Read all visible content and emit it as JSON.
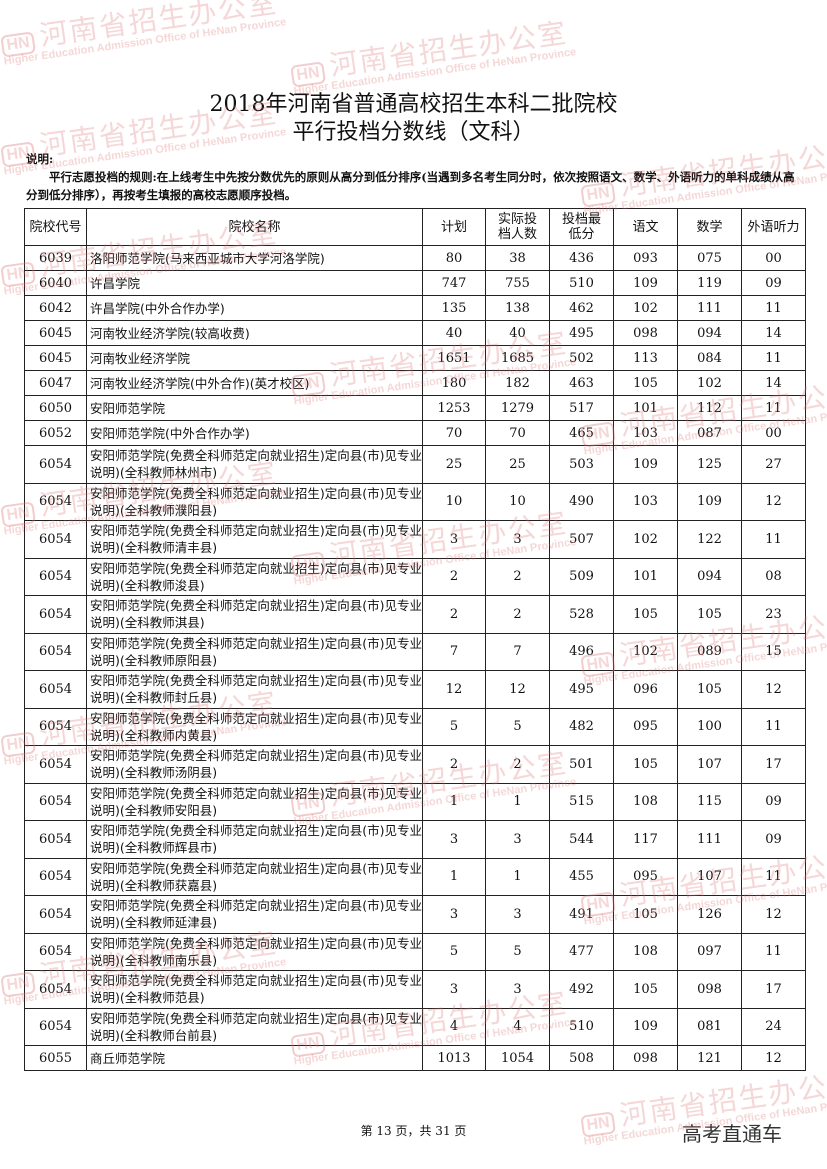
{
  "title_line1": "2018年河南省普通高校招生本科二批院校",
  "title_line2": "平行投档分数线（文科）",
  "note_label": "说明:",
  "note_body": "平行志愿投档的规则:在上线考生中先按分数优先的原则从高分到低分排序(当遇到多名考生同分时，依次按照语文、数学、外语听力的单科成绩从高分到低分排序），再按考生填报的高校志愿顺序投档。",
  "watermark": {
    "cn": "河南省招生办公室",
    "en": "Higher Education Admission Office of HeNan Province",
    "logo": "HN"
  },
  "table": {
    "headers": [
      "院校代号",
      "院校名称",
      "计划",
      "实际投档人数",
      "投档最低分",
      "语文",
      "数学",
      "外语听力"
    ],
    "rows": [
      [
        "6039",
        "洛阳师范学院(马来西亚城市大学河洛学院)",
        "80",
        "38",
        "436",
        "093",
        "075",
        "00"
      ],
      [
        "6040",
        "许昌学院",
        "747",
        "755",
        "510",
        "109",
        "119",
        "09"
      ],
      [
        "6042",
        "许昌学院(中外合作办学)",
        "135",
        "138",
        "462",
        "102",
        "111",
        "11"
      ],
      [
        "6045",
        "河南牧业经济学院(较高收费)",
        "40",
        "40",
        "495",
        "098",
        "094",
        "14"
      ],
      [
        "6045",
        "河南牧业经济学院",
        "1651",
        "1685",
        "502",
        "113",
        "084",
        "11"
      ],
      [
        "6047",
        "河南牧业经济学院(中外合作)(英才校区)",
        "180",
        "182",
        "463",
        "105",
        "102",
        "14"
      ],
      [
        "6050",
        "安阳师范学院",
        "1253",
        "1279",
        "517",
        "101",
        "112",
        "11"
      ],
      [
        "6052",
        "安阳师范学院(中外合作办学)",
        "70",
        "70",
        "465",
        "103",
        "087",
        "00"
      ],
      [
        "6054",
        "安阳师范学院(免费全科师范定向就业招生)定向县(市)见专业说明)(全科教师林州市)",
        "25",
        "25",
        "503",
        "109",
        "125",
        "27"
      ],
      [
        "6054",
        "安阳师范学院(免费全科师范定向就业招生)定向县(市)见专业说明)(全科教师濮阳县)",
        "10",
        "10",
        "490",
        "103",
        "109",
        "12"
      ],
      [
        "6054",
        "安阳师范学院(免费全科师范定向就业招生)定向县(市)见专业说明)(全科教师清丰县)",
        "3",
        "3",
        "507",
        "102",
        "122",
        "11"
      ],
      [
        "6054",
        "安阳师范学院(免费全科师范定向就业招生)定向县(市)见专业说明)(全科教师浚县)",
        "2",
        "2",
        "509",
        "101",
        "094",
        "08"
      ],
      [
        "6054",
        "安阳师范学院(免费全科师范定向就业招生)定向县(市)见专业说明)(全科教师淇县)",
        "2",
        "2",
        "528",
        "105",
        "105",
        "23"
      ],
      [
        "6054",
        "安阳师范学院(免费全科师范定向就业招生)定向县(市)见专业说明)(全科教师原阳县)",
        "7",
        "7",
        "496",
        "102",
        "089",
        "15"
      ],
      [
        "6054",
        "安阳师范学院(免费全科师范定向就业招生)定向县(市)见专业说明)(全科教师封丘县)",
        "12",
        "12",
        "495",
        "096",
        "105",
        "12"
      ],
      [
        "6054",
        "安阳师范学院(免费全科师范定向就业招生)定向县(市)见专业说明)(全科教师内黄县)",
        "5",
        "5",
        "482",
        "095",
        "100",
        "11"
      ],
      [
        "6054",
        "安阳师范学院(免费全科师范定向就业招生)定向县(市)见专业说明)(全科教师汤阴县)",
        "2",
        "2",
        "501",
        "105",
        "107",
        "17"
      ],
      [
        "6054",
        "安阳师范学院(免费全科师范定向就业招生)定向县(市)见专业说明)(全科教师安阳县)",
        "1",
        "1",
        "515",
        "108",
        "115",
        "09"
      ],
      [
        "6054",
        "安阳师范学院(免费全科师范定向就业招生)定向县(市)见专业说明)(全科教师辉县市)",
        "3",
        "3",
        "544",
        "117",
        "111",
        "09"
      ],
      [
        "6054",
        "安阳师范学院(免费全科师范定向就业招生)定向县(市)见专业说明)(全科教师获嘉县)",
        "1",
        "1",
        "455",
        "095",
        "107",
        "11"
      ],
      [
        "6054",
        "安阳师范学院(免费全科师范定向就业招生)定向县(市)见专业说明)(全科教师延津县)",
        "3",
        "3",
        "491",
        "105",
        "126",
        "12"
      ],
      [
        "6054",
        "安阳师范学院(免费全科师范定向就业招生)定向县(市)见专业说明)(全科教师南乐县)",
        "5",
        "5",
        "477",
        "108",
        "097",
        "11"
      ],
      [
        "6054",
        "安阳师范学院(免费全科师范定向就业招生)定向县(市)见专业说明)(全科教师范县)",
        "3",
        "3",
        "492",
        "105",
        "098",
        "17"
      ],
      [
        "6054",
        "安阳师范学院(免费全科师范定向就业招生)定向县(市)见专业说明)(全科教师台前县)",
        "4",
        "4",
        "510",
        "109",
        "081",
        "24"
      ],
      [
        "6055",
        "商丘师范学院",
        "1013",
        "1054",
        "508",
        "098",
        "121",
        "12"
      ]
    ]
  },
  "footer": "第 13 页，共 31 页",
  "brand": "高考直通车"
}
